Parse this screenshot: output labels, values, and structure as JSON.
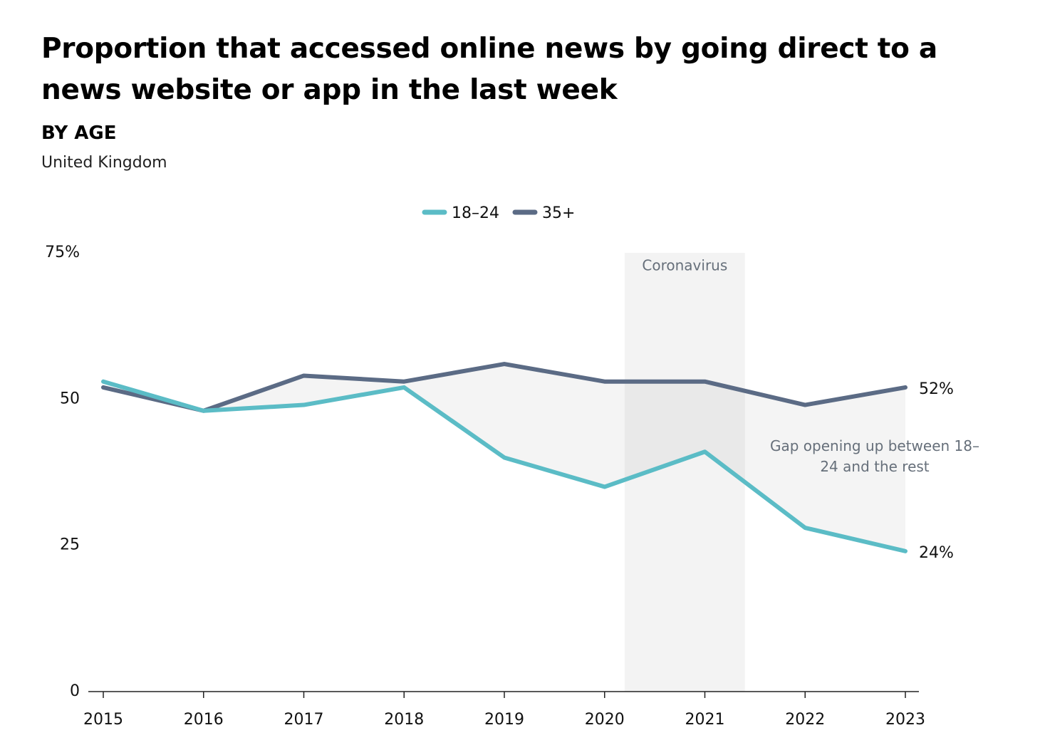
{
  "title": "Proportion that accessed online news by going direct to a news website or app in the last week",
  "subtitle": "BY AGE",
  "region": "United Kingdom",
  "chart_data": {
    "type": "line",
    "x": [
      2015,
      2016,
      2017,
      2018,
      2019,
      2020,
      2021,
      2022,
      2023
    ],
    "series": [
      {
        "name": "18–24",
        "color": "#5bbcc6",
        "values": [
          53,
          48,
          49,
          52,
          40,
          35,
          41,
          28,
          24
        ]
      },
      {
        "name": "35+",
        "color": "#5b6b85",
        "values": [
          52,
          48,
          54,
          53,
          56,
          53,
          53,
          49,
          52
        ]
      }
    ],
    "ylim": [
      0,
      75
    ],
    "yticks": [
      0,
      25,
      50,
      75
    ],
    "ytick_labels": [
      "0",
      "25",
      "50",
      "75%"
    ],
    "end_labels": [
      "24%",
      "52%"
    ],
    "legend_position": "top-center",
    "shaded_period": {
      "label": "Coronavirus",
      "from": 2020.2,
      "to": 2021.4
    },
    "gap_annotation": "Gap opening up between 18–24 and the rest",
    "grid": false
  }
}
